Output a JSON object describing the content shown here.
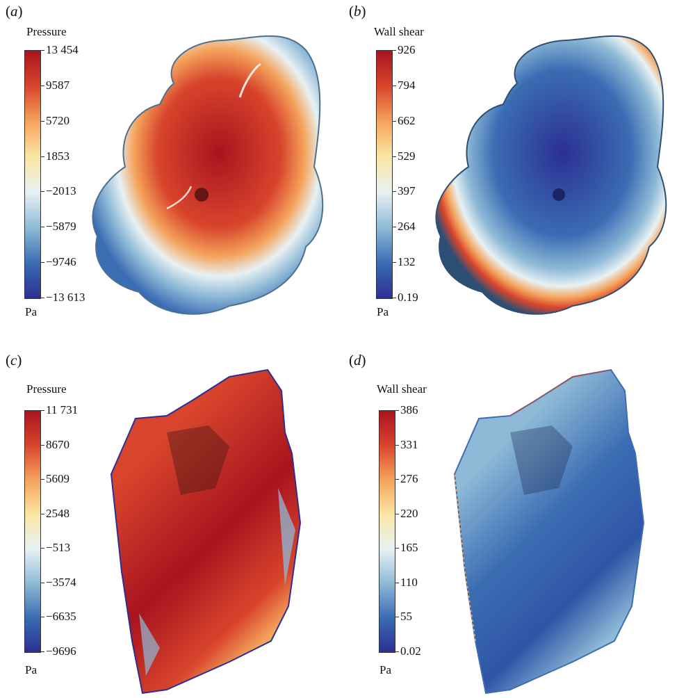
{
  "colormap": [
    "#2b2f93",
    "#3b6db3",
    "#8fbad7",
    "#e8f1f3",
    "#fbe6a3",
    "#f4a35b",
    "#d8452c",
    "#a8141e"
  ],
  "panels": [
    {
      "label_prefix": "(",
      "label_letter": "a",
      "label_suffix": ")",
      "colorbar": {
        "title": "Pressure",
        "unit": "Pa",
        "ticks": [
          "13 454",
          "9587",
          "5720",
          "1853",
          "−2013",
          "−5879",
          "−9746",
          "−13 613"
        ]
      }
    },
    {
      "label_prefix": "(",
      "label_letter": "b",
      "label_suffix": ")",
      "colorbar": {
        "title": "Wall shear",
        "unit": "Pa",
        "ticks": [
          "926",
          "794",
          "662",
          "529",
          "397",
          "264",
          "132",
          "0.19"
        ]
      }
    },
    {
      "label_prefix": "(",
      "label_letter": "c",
      "label_suffix": ")",
      "colorbar": {
        "title": "Pressure",
        "unit": "Pa",
        "ticks": [
          "11 731",
          "8670",
          "5609",
          "2548",
          "−513",
          "−3574",
          "−6635",
          "−9696"
        ]
      }
    },
    {
      "label_prefix": "(",
      "label_letter": "d",
      "label_suffix": ")",
      "colorbar": {
        "title": "Wall shear",
        "unit": "Pa",
        "ticks": [
          "386",
          "331",
          "276",
          "220",
          "165",
          "110",
          "55",
          "0.02"
        ]
      }
    }
  ]
}
